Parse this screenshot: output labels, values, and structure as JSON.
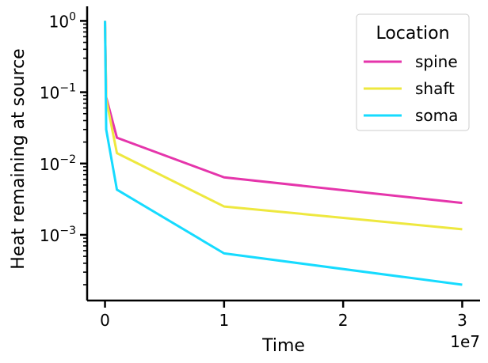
{
  "chart_data": {
    "type": "line",
    "xlabel": "Time",
    "ylabel": "Heat remaining at source",
    "x_offset_label": "1e7",
    "y_scale": "log",
    "xlim": [
      -1500000,
      31500000
    ],
    "ylim": [
      0.00012,
      1.6
    ],
    "x_ticks": [
      {
        "value": 0,
        "label": "0"
      },
      {
        "value": 10000000,
        "label": "1"
      },
      {
        "value": 20000000,
        "label": "2"
      },
      {
        "value": 30000000,
        "label": "3"
      }
    ],
    "y_ticks": [
      {
        "value": 1,
        "base": "10",
        "exp": "0"
      },
      {
        "value": 0.1,
        "base": "10",
        "exp": "−1"
      },
      {
        "value": 0.01,
        "base": "10",
        "exp": "−2"
      },
      {
        "value": 0.001,
        "base": "10",
        "exp": "−3"
      }
    ],
    "grid": false,
    "legend": {
      "title": "Location",
      "position": "top-right"
    },
    "series": [
      {
        "name": "spine",
        "color": "#e535ab",
        "x": [
          0,
          100000,
          1000000,
          10000000,
          30000000
        ],
        "y": [
          1.0,
          0.085,
          0.023,
          0.0064,
          0.0028
        ]
      },
      {
        "name": "shaft",
        "color": "#eee83f",
        "x": [
          0,
          100000,
          1000000,
          10000000,
          30000000
        ],
        "y": [
          1.0,
          0.08,
          0.014,
          0.0025,
          0.0012
        ]
      },
      {
        "name": "soma",
        "color": "#16dbff",
        "x": [
          0,
          100000,
          1000000,
          10000000,
          30000000
        ],
        "y": [
          1.0,
          0.03,
          0.0043,
          0.00055,
          0.0002
        ]
      }
    ]
  }
}
